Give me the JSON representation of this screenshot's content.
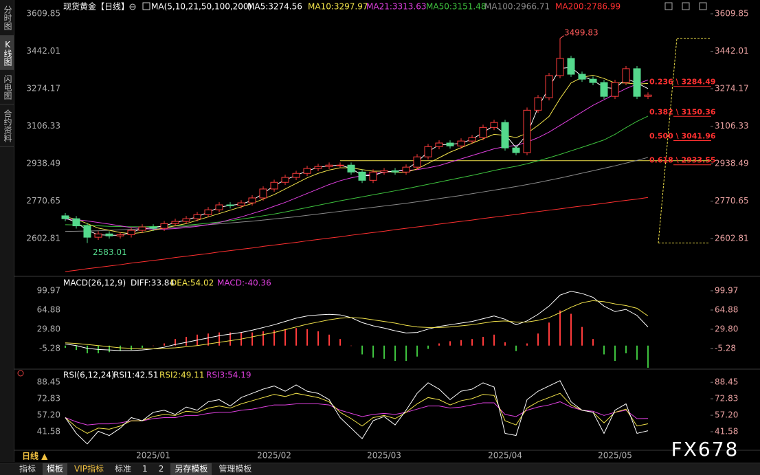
{
  "ui": {
    "tabs": [
      "分时图",
      "K线图",
      "闪电图",
      "合约资料"
    ],
    "period": "日线 ▲",
    "toolbar": [
      "指标",
      "模板",
      "VIP指标",
      "标准",
      "1",
      "2",
      "另存模板",
      "管理模板"
    ],
    "watermark": "FX678"
  },
  "chart_data": [
    {
      "type": "candlestick",
      "title": "现货黄金【日线】",
      "indicator": "MA(5,10,21,50,100,200)",
      "categories": [
        null,
        null,
        null,
        null,
        null,
        null,
        null,
        null,
        "2025/01",
        null,
        null,
        null,
        null,
        null,
        null,
        null,
        null,
        null,
        null,
        "2025/02",
        null,
        null,
        null,
        null,
        null,
        null,
        null,
        null,
        null,
        "2025/03",
        null,
        null,
        null,
        null,
        null,
        null,
        null,
        null,
        null,
        null,
        "2025/04",
        null,
        null,
        null,
        null,
        null,
        null,
        null,
        null,
        null,
        "2025/05",
        null,
        null,
        null
      ],
      "open": [
        2705,
        2692,
        2660,
        2609,
        2624,
        2615,
        2620,
        2640,
        2655,
        2649,
        2670,
        2680,
        2692,
        2710,
        2732,
        2754,
        2750,
        2763,
        2785,
        2825,
        2855,
        2877,
        2895,
        2917,
        2926,
        2932,
        2932,
        2901,
        2864,
        2901,
        2907,
        2901,
        2923,
        2969,
        3015,
        3031,
        3018,
        3040,
        3055,
        3101,
        3123,
        3009,
        2988,
        3178,
        3234,
        3333,
        3410,
        3339,
        3317,
        3302,
        3240,
        3302,
        3364,
        3240
      ],
      "high": [
        2717,
        2704,
        2672,
        2636,
        2636,
        2632,
        2652,
        2667,
        2667,
        2682,
        2692,
        2704,
        2722,
        2744,
        2766,
        2766,
        2775,
        2797,
        2837,
        2867,
        2889,
        2907,
        2929,
        2938,
        2944,
        2944,
        2944,
        2913,
        2913,
        2919,
        2919,
        2935,
        2981,
        3027,
        3043,
        3043,
        3052,
        3067,
        3113,
        3135,
        3135,
        3021,
        3190,
        3246,
        3345,
        3499.83,
        3422,
        3351,
        3329,
        3314,
        3314,
        3376,
        3376,
        3258
      ],
      "low": [
        2680,
        2648,
        2583.01,
        2597,
        2603,
        2603,
        2608,
        2628,
        2637,
        2637,
        2658,
        2668,
        2680,
        2698,
        2720,
        2738,
        2738,
        2751,
        2773,
        2813,
        2843,
        2865,
        2883,
        2905,
        2914,
        2920,
        2889,
        2852,
        2852,
        2889,
        2889,
        2889,
        2911,
        2957,
        3003,
        3006,
        3006,
        3028,
        3043,
        3089,
        2997,
        2976,
        2976,
        3166,
        3222,
        3321,
        3327,
        3305,
        3290,
        3228,
        3228,
        3290,
        3228,
        3228
      ],
      "close": [
        2692,
        2660,
        2609,
        2624,
        2615,
        2620,
        2640,
        2655,
        2649,
        2670,
        2680,
        2692,
        2710,
        2732,
        2754,
        2750,
        2763,
        2785,
        2825,
        2855,
        2877,
        2895,
        2917,
        2926,
        2932,
        2932,
        2901,
        2864,
        2901,
        2907,
        2901,
        2923,
        2969,
        3015,
        3031,
        3018,
        3040,
        3055,
        3101,
        3123,
        3009,
        2988,
        3178,
        3234,
        3333,
        3410,
        3339,
        3317,
        3302,
        3240,
        3302,
        3364,
        3240,
        3246
      ],
      "up_color": "#ff3b3b",
      "down_color": "#54d98c",
      "series": [
        {
          "name": "MA5:3274.56",
          "color": "#ffffff",
          "values": [
            2695,
            2676,
            2640,
            2620,
            2618,
            2618,
            2630,
            2648,
            2652,
            2660,
            2675,
            2686,
            2701,
            2721,
            2743,
            2752,
            2757,
            2774,
            2805,
            2840,
            2866,
            2886,
            2906,
            2922,
            2929,
            2932,
            2918,
            2885,
            2885,
            2902,
            2904,
            2912,
            2946,
            2992,
            3023,
            3025,
            3030,
            3048,
            3078,
            3110,
            3070,
            3010,
            3070,
            3190,
            3280,
            3365,
            3370,
            3330,
            3312,
            3280,
            3275,
            3320,
            3300,
            3274.56
          ]
        },
        {
          "name": "MA10:3297.97",
          "color": "#f2e34a",
          "values": [
            2700,
            2690,
            2670,
            2650,
            2640,
            2630,
            2625,
            2630,
            2640,
            2650,
            2660,
            2670,
            2685,
            2700,
            2715,
            2730,
            2745,
            2760,
            2780,
            2800,
            2825,
            2850,
            2875,
            2895,
            2910,
            2920,
            2920,
            2912,
            2905,
            2905,
            2900,
            2900,
            2915,
            2940,
            2965,
            2990,
            3010,
            3030,
            3050,
            3070,
            3065,
            3055,
            3075,
            3110,
            3150,
            3230,
            3300,
            3325,
            3335,
            3320,
            3300,
            3300,
            3295,
            3297.97
          ]
        },
        {
          "name": "MA21:3313.63",
          "color": "#e040e0",
          "values": [
            2690,
            2688,
            2682,
            2675,
            2668,
            2660,
            2652,
            2648,
            2645,
            2645,
            2648,
            2652,
            2658,
            2665,
            2675,
            2688,
            2700,
            2715,
            2730,
            2748,
            2765,
            2785,
            2805,
            2825,
            2845,
            2862,
            2875,
            2885,
            2893,
            2900,
            2905,
            2908,
            2912,
            2920,
            2930,
            2945,
            2960,
            2975,
            2990,
            3005,
            3015,
            3020,
            3035,
            3055,
            3080,
            3110,
            3140,
            3170,
            3200,
            3225,
            3250,
            3275,
            3295,
            3313.63
          ]
        },
        {
          "name": "MA50:3151.48",
          "color": "#3ec23e",
          "values": [
            2665,
            2664,
            2662,
            2660,
            2658,
            2657,
            2656,
            2656,
            2657,
            2658,
            2660,
            2663,
            2667,
            2672,
            2677,
            2683,
            2690,
            2697,
            2705,
            2713,
            2722,
            2732,
            2742,
            2752,
            2762,
            2772,
            2781,
            2790,
            2799,
            2808,
            2817,
            2826,
            2836,
            2846,
            2856,
            2866,
            2876,
            2886,
            2897,
            2908,
            2918,
            2927,
            2938,
            2951,
            2965,
            2980,
            2996,
            3012,
            3028,
            3045,
            3070,
            3100,
            3128,
            3151.48
          ]
        },
        {
          "name": "MA100:2966.71",
          "color": "#8a8a8a",
          "values": [
            2635,
            2636,
            2637,
            2638,
            2640,
            2642,
            2644,
            2646,
            2648,
            2651,
            2654,
            2657,
            2661,
            2665,
            2669,
            2673,
            2677,
            2681,
            2686,
            2691,
            2696,
            2701,
            2707,
            2713,
            2719,
            2725,
            2731,
            2737,
            2743,
            2749,
            2755,
            2761,
            2768,
            2775,
            2782,
            2789,
            2796,
            2804,
            2812,
            2820,
            2828,
            2836,
            2845,
            2854,
            2864,
            2874,
            2885,
            2896,
            2907,
            2918,
            2929,
            2941,
            2953,
            2966.71
          ]
        },
        {
          "name": "MA200:2786.99",
          "color": "#ff3030",
          "values": [
            2455,
            2461,
            2468,
            2474,
            2480,
            2486,
            2493,
            2499,
            2505,
            2511,
            2518,
            2524,
            2530,
            2536,
            2543,
            2549,
            2555,
            2561,
            2568,
            2574,
            2580,
            2586,
            2593,
            2599,
            2605,
            2611,
            2618,
            2624,
            2630,
            2636,
            2643,
            2649,
            2655,
            2661,
            2668,
            2674,
            2680,
            2686,
            2693,
            2699,
            2705,
            2711,
            2718,
            2724,
            2730,
            2736,
            2743,
            2749,
            2755,
            2761,
            2768,
            2774,
            2780,
            2786.99
          ]
        }
      ],
      "fib": [
        {
          "label": "0.236 \\ 3284.49",
          "value": 3284.49
        },
        {
          "label": "0.382 \\ 3150.36",
          "value": 3150.36
        },
        {
          "label": "0.500 \\ 3041.96",
          "value": 3041.96
        },
        {
          "label": "0.618 \\ 2933.55",
          "value": 2933.55
        }
      ],
      "fib_color": "#ff3030",
      "hline": 2952,
      "hline_color": "#f2e34a",
      "ylim": [
        2440,
        3647
      ],
      "yticks": [
        3609.85,
        3442.01,
        3274.17,
        3106.33,
        2938.49,
        2770.65,
        2602.81
      ]
    },
    {
      "type": "macd",
      "indicator": "MACD(26,12,9)",
      "series": [
        {
          "name": "DIFF:33.84",
          "type": "line",
          "color": "#ffffff",
          "values": [
            3,
            0,
            -5,
            -7,
            -8,
            -9,
            -9,
            -8,
            -6,
            -3,
            2,
            6,
            10,
            14,
            18,
            21,
            24,
            28,
            33,
            38,
            44,
            50,
            54,
            56,
            57,
            56,
            51,
            42,
            36,
            32,
            27,
            23,
            24,
            30,
            35,
            38,
            41,
            44,
            49,
            54,
            48,
            38,
            45,
            57,
            72,
            92,
            99,
            95,
            88,
            72,
            62,
            66,
            55,
            33.84
          ]
        },
        {
          "name": "DEA:54.02",
          "type": "line",
          "color": "#f2e34a",
          "values": [
            5,
            4,
            2,
            0,
            -2,
            -4,
            -5,
            -6,
            -6,
            -5,
            -4,
            -2,
            0,
            3,
            6,
            9,
            12,
            16,
            20,
            24,
            29,
            34,
            39,
            43,
            47,
            50,
            51,
            50,
            47,
            44,
            41,
            37,
            34,
            33,
            33,
            34,
            36,
            38,
            41,
            44,
            45,
            43,
            43,
            46,
            51,
            60,
            70,
            78,
            82,
            80,
            76,
            73,
            68,
            54.02
          ]
        },
        {
          "name": "MACD:-40.36",
          "type": "bar",
          "color": "#e040e0",
          "up_color": "#ff3b3b",
          "down_color": "#3ec23e",
          "values": [
            -4,
            -8,
            -14,
            -14,
            -12,
            -10,
            -8,
            -4,
            0,
            4,
            12,
            16,
            20,
            22,
            24,
            24,
            24,
            24,
            26,
            28,
            30,
            32,
            30,
            26,
            20,
            12,
            0,
            -16,
            -22,
            -24,
            -28,
            -28,
            -20,
            -6,
            4,
            8,
            10,
            12,
            16,
            20,
            6,
            -10,
            4,
            22,
            42,
            64,
            58,
            34,
            12,
            -16,
            -28,
            -14,
            -26,
            -40.36
          ]
        }
      ],
      "ylim": [
        -40.4,
        122.5
      ],
      "yticks": [
        99.97,
        64.88,
        {
          "value": 29.8,
          "label": "29.80"
        },
        -5.28
      ]
    },
    {
      "type": "rsi",
      "indicator": "RSI(6,12,24)",
      "series": [
        {
          "name": "RSI1:42.51",
          "type": "line",
          "color": "#ffffff",
          "values": [
            55,
            40,
            30,
            42,
            38,
            45,
            55,
            52,
            60,
            62,
            58,
            65,
            62,
            70,
            72,
            66,
            74,
            78,
            82,
            85,
            80,
            86,
            80,
            78,
            72,
            55,
            45,
            35,
            52,
            56,
            48,
            62,
            78,
            88,
            82,
            72,
            80,
            82,
            88,
            84,
            40,
            38,
            72,
            80,
            85,
            90,
            70,
            62,
            60,
            40,
            62,
            68,
            40,
            42.51
          ]
        },
        {
          "name": "RSI2:49.11",
          "type": "line",
          "color": "#f2e34a",
          "values": [
            55,
            46,
            40,
            45,
            44,
            47,
            52,
            52,
            56,
            58,
            57,
            61,
            60,
            64,
            66,
            64,
            68,
            71,
            74,
            77,
            75,
            78,
            76,
            74,
            70,
            60,
            54,
            47,
            55,
            57,
            54,
            60,
            68,
            74,
            72,
            67,
            71,
            73,
            77,
            76,
            52,
            48,
            64,
            70,
            74,
            78,
            67,
            62,
            60,
            50,
            60,
            63,
            47,
            49.11
          ]
        },
        {
          "name": "RSI3:54.19",
          "type": "line",
          "color": "#e040e0",
          "values": [
            55,
            51,
            48,
            49,
            49,
            50,
            52,
            52,
            54,
            55,
            55,
            57,
            57,
            59,
            60,
            60,
            62,
            63,
            65,
            67,
            67,
            68,
            68,
            68,
            67,
            62,
            59,
            56,
            58,
            59,
            58,
            60,
            63,
            66,
            66,
            64,
            65,
            67,
            69,
            69,
            58,
            56,
            62,
            65,
            67,
            70,
            65,
            62,
            61,
            57,
            60,
            62,
            54,
            54.19
          ]
        }
      ],
      "ylim": [
        24,
        99
      ],
      "yticks": [
        88.45,
        72.83,
        {
          "value": 57.2,
          "label": "57.20"
        },
        41.58
      ]
    }
  ]
}
